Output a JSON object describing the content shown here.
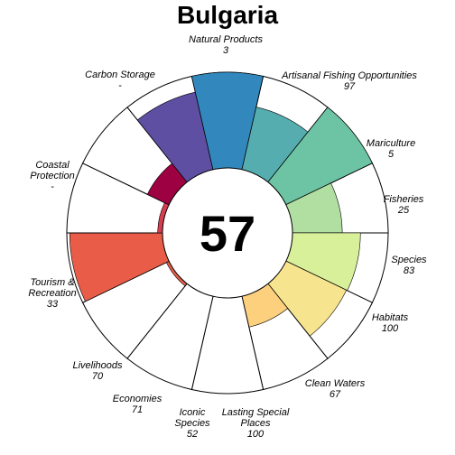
{
  "chart_data": {
    "type": "flower",
    "title": "Bulgaria",
    "center_score": "57",
    "ylim": [
      0,
      100
    ],
    "petals": [
      {
        "name": "Natural Products",
        "value_label": "3",
        "value": 3,
        "color": "#e95d48"
      },
      {
        "name": "Artisanal Fishing Opportunities",
        "value_label": "97",
        "value": 97,
        "color": "#e95d48"
      },
      {
        "name": "Mariculture",
        "value_label": "5",
        "value": 5,
        "color": "#d53e4f"
      },
      {
        "name": "Fisheries",
        "value_label": "25",
        "value": 25,
        "color": "#9e0142"
      },
      {
        "name": "Species",
        "value_label": "83",
        "value": 83,
        "color": "#5e4fa2"
      },
      {
        "name": "Habitats",
        "value_label": "100",
        "value": 100,
        "color": "#3288bd"
      },
      {
        "name": "Clean Waters",
        "value_label": "67",
        "value": 67,
        "color": "#56adaf"
      },
      {
        "name": "Lasting Special Places",
        "value_label": "100",
        "value": 100,
        "color": "#6cc4a4"
      },
      {
        "name": "Iconic Species",
        "value_label": "52",
        "value": 52,
        "color": "#b1dfa2"
      },
      {
        "name": "Economies",
        "value_label": "71",
        "value": 71,
        "color": "#d9f09b"
      },
      {
        "name": "Livelihoods",
        "value_label": "70",
        "value": 70,
        "color": "#f7e48f"
      },
      {
        "name": "Tourism & Recreation",
        "value_label": "33",
        "value": 33,
        "color": "#fdd07e"
      },
      {
        "name": "Coastal Protection",
        "value_label": "-",
        "value": null,
        "color": "#cccccc"
      },
      {
        "name": "Carbon Storage",
        "value_label": "-",
        "value": null,
        "color": "#cccccc"
      }
    ]
  }
}
